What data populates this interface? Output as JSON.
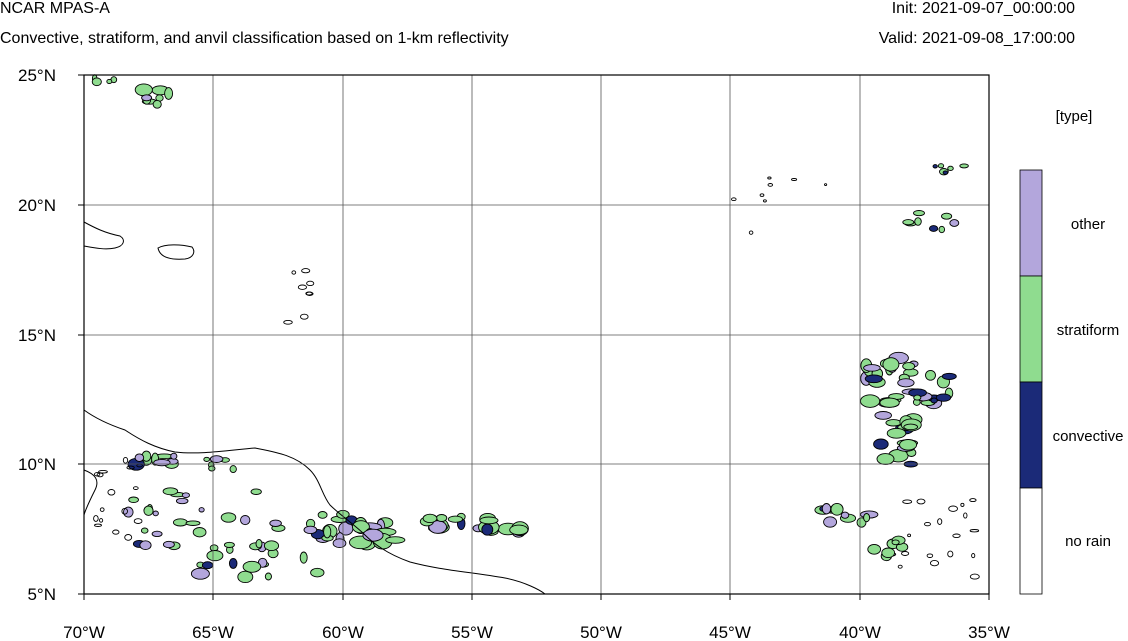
{
  "header": {
    "title": "NCAR MPAS-A",
    "subtitle": "Convective, stratiform, and anvil classification based on 1-km reflectivity",
    "init": "Init: 2021-09-07_00:00:00",
    "valid": "Valid: 2021-09-08_17:00:00"
  },
  "map": {
    "lon_range": [
      -70,
      -35
    ],
    "lat_range": [
      5,
      25
    ],
    "x_ticks": [
      "70°W",
      "65°W",
      "60°W",
      "55°W",
      "50°W",
      "45°W",
      "40°W",
      "35°W"
    ],
    "y_ticks": [
      "25°N",
      "20°N",
      "15°N",
      "10°N",
      "5°N"
    ],
    "gridlines": true
  },
  "legend": {
    "title": "[type]",
    "entries": [
      {
        "label": "other",
        "color": "#b3a6dc"
      },
      {
        "label": "stratiform",
        "color": "#8fdc8f"
      },
      {
        "label": "convective",
        "color": "#1b2a78"
      },
      {
        "label": "no rain",
        "color": "#ffffff"
      }
    ]
  },
  "colors": {
    "frame": "#000000",
    "grid": "#555555",
    "coast": "#000000"
  }
}
